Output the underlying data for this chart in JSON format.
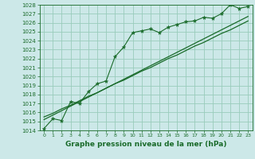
{
  "title": "",
  "xlabel": "Graphe pression niveau de la mer (hPa)",
  "bg_color": "#cce8e8",
  "grid_color": "#99ccbb",
  "line_color": "#1a6b2a",
  "x": [
    0,
    1,
    2,
    3,
    4,
    5,
    6,
    7,
    8,
    9,
    10,
    11,
    12,
    13,
    14,
    15,
    16,
    17,
    18,
    19,
    20,
    21,
    22,
    23
  ],
  "y": [
    1014.2,
    1015.3,
    1015.1,
    1017.2,
    1017.0,
    1018.3,
    1019.2,
    1019.5,
    1022.2,
    1023.3,
    1024.9,
    1025.1,
    1025.3,
    1024.9,
    1025.5,
    1025.8,
    1026.1,
    1026.2,
    1026.6,
    1026.5,
    1027.0,
    1028.0,
    1027.6,
    1027.8
  ],
  "trend1": [
    1015.2,
    1015.7,
    1016.2,
    1016.7,
    1017.2,
    1017.7,
    1018.2,
    1018.7,
    1019.2,
    1019.7,
    1020.2,
    1020.7,
    1021.2,
    1021.7,
    1022.2,
    1022.7,
    1023.2,
    1023.7,
    1024.2,
    1024.7,
    1025.2,
    1025.7,
    1026.2,
    1026.7
  ],
  "trend2": [
    1015.5,
    1015.9,
    1016.4,
    1016.8,
    1017.3,
    1017.8,
    1018.2,
    1018.7,
    1019.2,
    1019.6,
    1020.1,
    1020.6,
    1021.0,
    1021.5,
    1022.0,
    1022.4,
    1022.9,
    1023.4,
    1023.8,
    1024.3,
    1024.8,
    1025.2,
    1025.7,
    1026.2
  ],
  "ylim_min": 1014,
  "ylim_max": 1028,
  "xlim_min": -0.5,
  "xlim_max": 23.5
}
